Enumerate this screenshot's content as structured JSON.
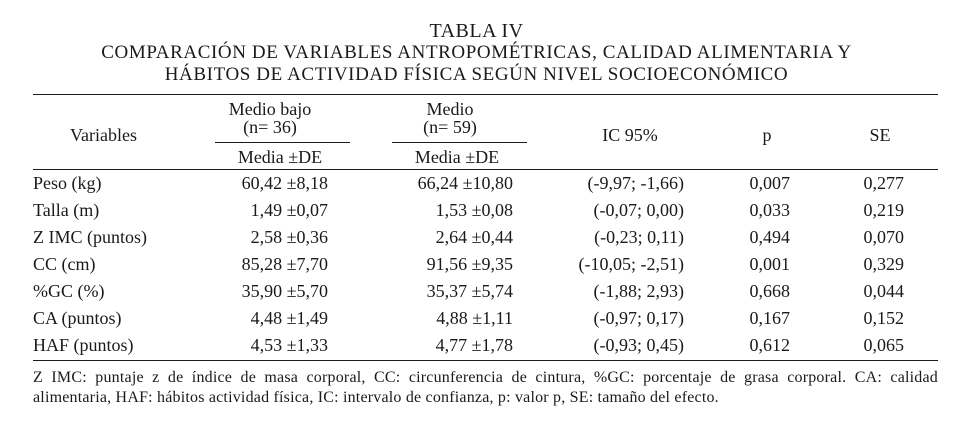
{
  "table": {
    "label": "TABLA IV",
    "caption_line1": "COMPARACIÓN DE VARIABLES ANTROPOMÉTRICAS, CALIDAD ALIMENTARIA Y",
    "caption_line2": "HÁBITOS DE ACTIVIDAD FÍSICA SEGÚN NIVEL SOCIOECONÓMICO",
    "headers": {
      "variables": "Variables",
      "group1_name": "Medio bajo",
      "group1_n": "(n= 36)",
      "group2_name": "Medio",
      "group2_n": "(n= 59)",
      "ci": "IC 95%",
      "p": "p",
      "se": "SE",
      "stat": "Media ±DE"
    },
    "rows": [
      {
        "variable": "Peso (kg)",
        "g1": "60,42 ±8,18",
        "g2": "66,24 ±10,80",
        "ci": "(-9,97; -1,66)",
        "p": "0,007",
        "se": "0,277"
      },
      {
        "variable": "Talla (m)",
        "g1": "1,49 ±0,07",
        "g2": "1,53 ±0,08",
        "ci": "(-0,07; 0,00)",
        "p": "0,033",
        "se": "0,219"
      },
      {
        "variable": "Z IMC (puntos)",
        "g1": "2,58 ±0,36",
        "g2": "2,64 ±0,44",
        "ci": "(-0,23; 0,11)",
        "p": "0,494",
        "se": "0,070"
      },
      {
        "variable": "CC (cm)",
        "g1": "85,28 ±7,70",
        "g2": "91,56 ±9,35",
        "ci": "(-10,05; -2,51)",
        "p": "0,001",
        "se": "0,329"
      },
      {
        "variable": "%GC (%)",
        "g1": "35,90 ±5,70",
        "g2": "35,37 ±5,74",
        "ci": "(-1,88; 2,93)",
        "p": "0,668",
        "se": "0,044"
      },
      {
        "variable": "CA (puntos)",
        "g1": "4,48 ±1,49",
        "g2": "4,88 ±1,11",
        "ci": "(-0,97; 0,17)",
        "p": "0,167",
        "se": "0,152"
      },
      {
        "variable": "HAF (puntos)",
        "g1": "4,53 ±1,33",
        "g2": "4,77 ±1,78",
        "ci": "(-0,93; 0,45)",
        "p": "0,612",
        "se": "0,065"
      }
    ],
    "footnote": "Z IMC: puntaje z de índice de masa corporal, CC: circunferencia de cintura, %GC: porcentaje de grasa corporal. CA: calidad alimentaria, HAF: hábitos actividad física, IC: intervalo de confianza, p: valor p, SE: tamaño del efecto."
  }
}
